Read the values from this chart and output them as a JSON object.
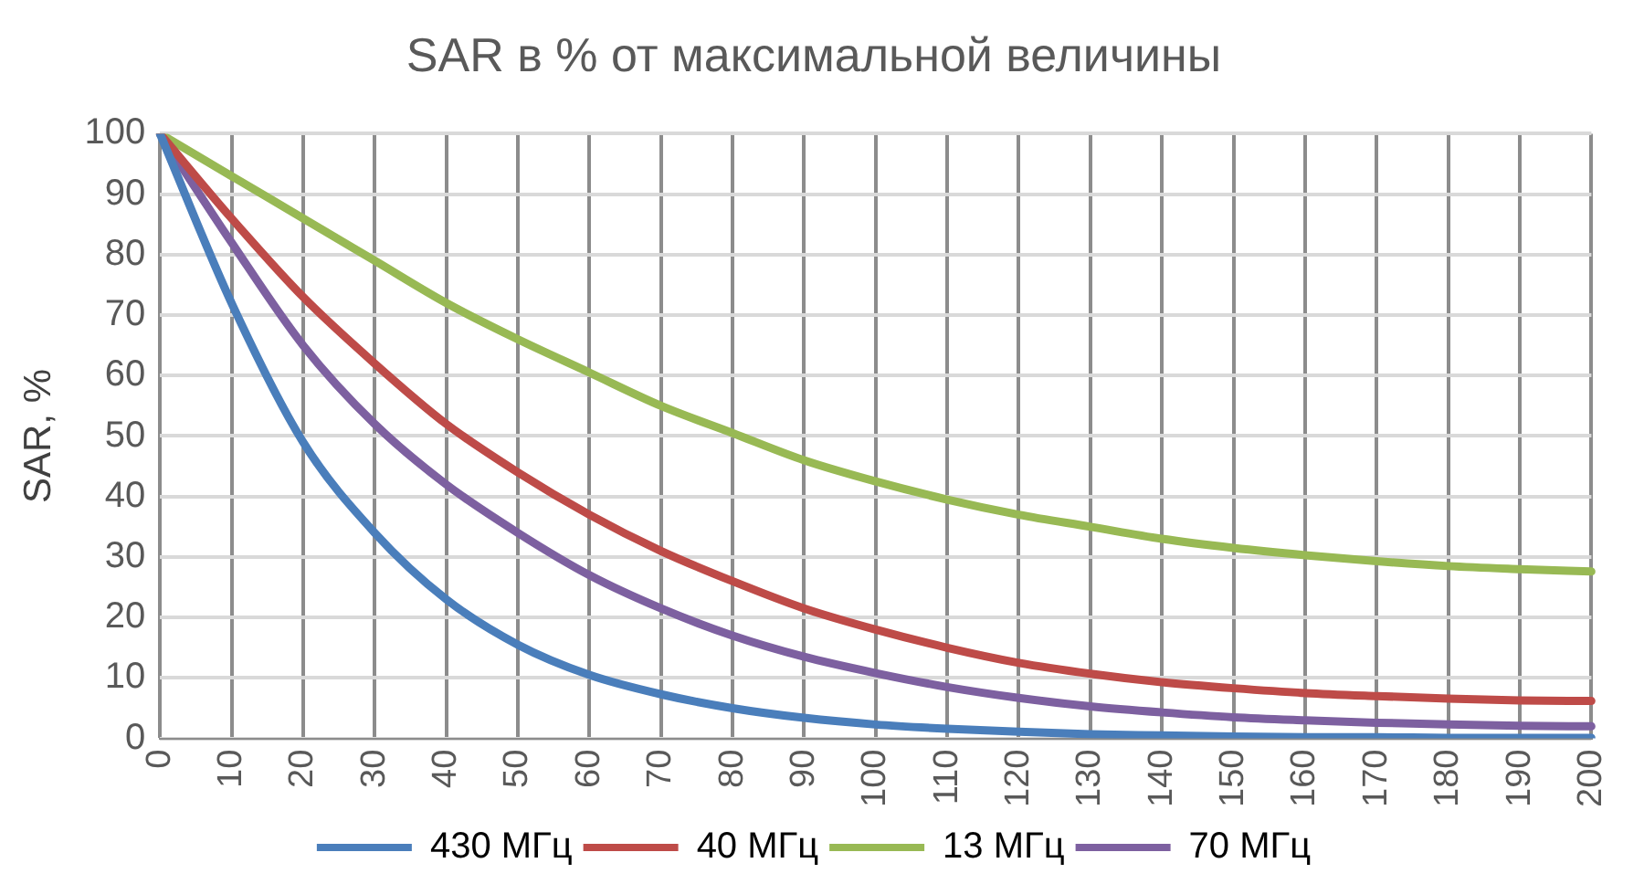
{
  "chart_data": {
    "type": "line",
    "title": "SAR в % от максимальной величины",
    "ylabel": "SAR, %",
    "categories": [
      "0",
      "10",
      "20",
      "30",
      "40",
      "50",
      "60",
      "70",
      "80",
      "90",
      "100",
      "110",
      "120",
      "130",
      "140",
      "150",
      "160",
      "170",
      "180",
      "190",
      "200"
    ],
    "series": [
      {
        "name": "430 МГц",
        "color": "#4a7ebb",
        "values": [
          100,
          72,
          49,
          34,
          23,
          15.5,
          10.5,
          7.3,
          5,
          3.4,
          2.3,
          1.6,
          1.1,
          0.7,
          0.5,
          0.3,
          0.2,
          0.2,
          0.1,
          0.1,
          0.1
        ]
      },
      {
        "name": "40 МГц",
        "color": "#be4b48",
        "values": [
          100,
          86,
          73,
          62,
          52,
          44,
          37,
          31,
          26,
          21.5,
          18,
          15,
          12.5,
          10.7,
          9.3,
          8.3,
          7.5,
          7,
          6.6,
          6.3,
          6.2
        ]
      },
      {
        "name": "13 МГц",
        "color": "#98b954",
        "values": [
          100,
          93,
          86,
          79,
          72,
          66,
          60.5,
          55,
          50.5,
          46,
          42.5,
          39.5,
          37,
          35,
          33,
          31.5,
          30.3,
          29.3,
          28.5,
          28,
          27.6
        ]
      },
      {
        "name": "70 МГц",
        "color": "#7d60a0",
        "values": [
          100,
          82,
          65,
          52,
          42,
          34,
          27,
          21.5,
          17,
          13.5,
          10.8,
          8.5,
          6.7,
          5.3,
          4.3,
          3.5,
          3,
          2.6,
          2.3,
          2.1,
          2
        ]
      }
    ],
    "ylim": [
      0,
      100
    ],
    "yticks": [
      0,
      10,
      20,
      30,
      40,
      50,
      60,
      70,
      80,
      90,
      100
    ],
    "grid": true,
    "legend": "bottom",
    "marker": "none",
    "line_style": "solid"
  }
}
